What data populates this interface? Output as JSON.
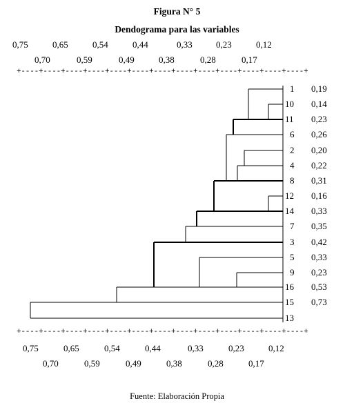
{
  "figure": {
    "title": "Figura N° 5",
    "subtitle": "Dendograma para las variables",
    "source": "Fuente: Elaboración Propia"
  },
  "scale": {
    "row1": [
      "0,75",
      "0,65",
      "0,54",
      "0,44",
      "0,33",
      "0,23",
      "0,12"
    ],
    "row2": [
      "0,70",
      "0,59",
      "0,49",
      "0,38",
      "0,28",
      "0,17"
    ],
    "top_ruler": "+----+----+----+----+----+----+----+----+----+----+----+----+----+",
    "bottom_ruler": "+----+----+----+----+----+----+----+----+----+----+----+----+----+"
  },
  "leaves": [
    {
      "label": "1",
      "value": "0,19"
    },
    {
      "label": "10",
      "value": "0,14"
    },
    {
      "label": "11",
      "value": "0,23"
    },
    {
      "label": "6",
      "value": "0,26"
    },
    {
      "label": "2",
      "value": "0,20"
    },
    {
      "label": "4",
      "value": "0,22"
    },
    {
      "label": "8",
      "value": "0,31"
    },
    {
      "label": "12",
      "value": "0,16"
    },
    {
      "label": "14",
      "value": "0,33"
    },
    {
      "label": "7",
      "value": "0,35"
    },
    {
      "label": "3",
      "value": "0,42"
    },
    {
      "label": "5",
      "value": "0,33"
    },
    {
      "label": "9",
      "value": "0,23"
    },
    {
      "label": "16",
      "value": "0,53"
    },
    {
      "label": "15",
      "value": "0,73"
    },
    {
      "label": "13",
      "value": ""
    }
  ],
  "merges": [
    {
      "leaf": "1",
      "partner": "10",
      "height": "0,19"
    },
    {
      "leaf": "10",
      "partner": "11",
      "height": "0,14"
    },
    {
      "leaf": "11",
      "partner": "6",
      "height": "0,23"
    },
    {
      "leaf": "6",
      "partner": "8",
      "height": "0,26"
    },
    {
      "leaf": "2",
      "partner": "4",
      "height": "0,20"
    },
    {
      "leaf": "4",
      "partner": "8",
      "height": "0,22"
    },
    {
      "leaf": "8",
      "partner": "14",
      "height": "0,31"
    },
    {
      "leaf": "12",
      "partner": "14",
      "height": "0,16"
    },
    {
      "leaf": "14",
      "partner": "7",
      "height": "0,33"
    },
    {
      "leaf": "7",
      "partner": "3",
      "height": "0,35"
    },
    {
      "leaf": "3",
      "partner": "16",
      "height": "0,42"
    },
    {
      "leaf": "5",
      "partner": "16",
      "height": "0,33"
    },
    {
      "leaf": "9",
      "partner": "16",
      "height": "0,23"
    },
    {
      "leaf": "16",
      "partner": "15",
      "height": "0,53"
    },
    {
      "leaf": "15",
      "partner": "13",
      "height": "0,73"
    }
  ]
}
